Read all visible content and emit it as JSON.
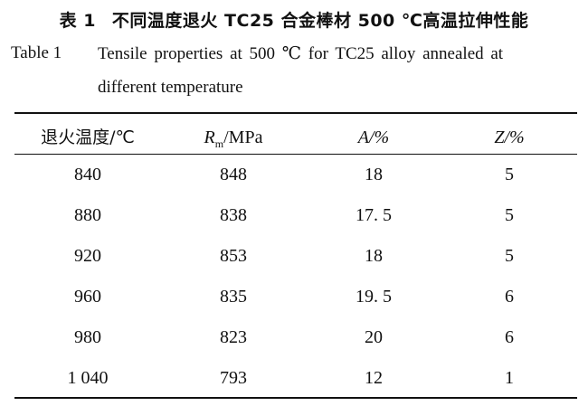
{
  "caption": {
    "cn_label": "表 1",
    "cn_title": "不同温度退火 TC25 合金棒材 500 ℃高温拉伸性能",
    "en_label": "Table 1",
    "en_title_line1": "Tensile properties at 500 ℃ for TC25 alloy annealed at",
    "en_title_line2": "different temperature"
  },
  "table": {
    "headers": [
      {
        "text": "退火温度/℃"
      },
      {
        "symbol": "R",
        "sub": "m",
        "unit": "/MPa"
      },
      {
        "symbol": "A",
        "unit": "/%"
      },
      {
        "symbol": "Z",
        "unit": "/%"
      }
    ],
    "rows": [
      [
        "840",
        "848",
        "18",
        "5"
      ],
      [
        "880",
        "838",
        "17. 5",
        "5"
      ],
      [
        "920",
        "853",
        "18",
        "5"
      ],
      [
        "960",
        "835",
        "19. 5",
        "6"
      ],
      [
        "980",
        "823",
        "20",
        "6"
      ],
      [
        "1 040",
        "793",
        "12",
        "1"
      ]
    ]
  }
}
